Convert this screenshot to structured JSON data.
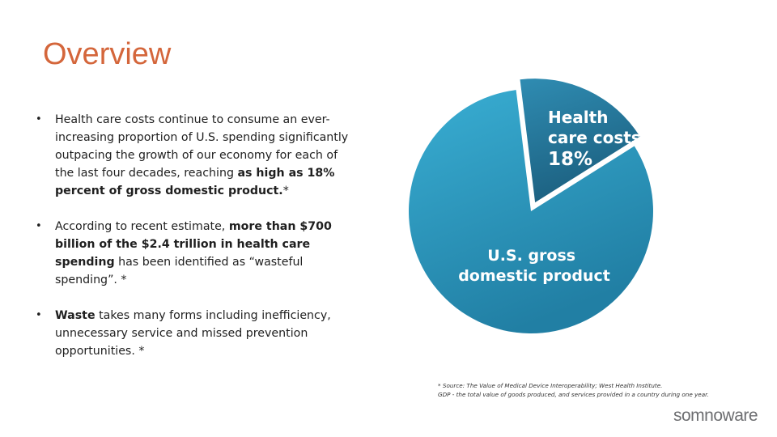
{
  "title": "Overview",
  "bullets": [
    {
      "parts": [
        {
          "text": "Health care costs continue to consume an ever-increasing proportion of U.S. spending significantly outpacing the growth of our economy for each of the last four decades, reaching ",
          "bold": false
        },
        {
          "text": "as high as 18% percent of gross domestic product.",
          "bold": true
        },
        {
          "text": "*",
          "bold": false
        }
      ]
    },
    {
      "parts": [
        {
          "text": "According to recent estimate, ",
          "bold": false
        },
        {
          "text": "more than $700 billion of the $2.4 trillion in health care spending",
          "bold": true
        },
        {
          "text": " has been identified as “wasteful spending”. *",
          "bold": false
        }
      ]
    },
    {
      "parts": [
        {
          "text": "Waste",
          "bold": true
        },
        {
          "text": " takes many forms including inefficiency, unnecessary service and missed prevention opportunities. *",
          "bold": false
        }
      ]
    }
  ],
  "pie": {
    "slices": [
      {
        "label_lines": [
          "Health",
          "care costs",
          "18%"
        ],
        "value_percent": 18,
        "color": "#2a7fa6"
      },
      {
        "label_lines": [
          "U.S. gross",
          "domestic product"
        ],
        "value_percent": 82,
        "color": "#2fa1c8"
      }
    ]
  },
  "footnote": {
    "line1": "* Source: The Value of Medical Device Interoperability; West Health Institute.",
    "line2": "GDP - the total value of goods produced, and services provided in a country during one year."
  },
  "logo": {
    "text": "somnoware",
    "accent_color": "#3a8fb5"
  }
}
